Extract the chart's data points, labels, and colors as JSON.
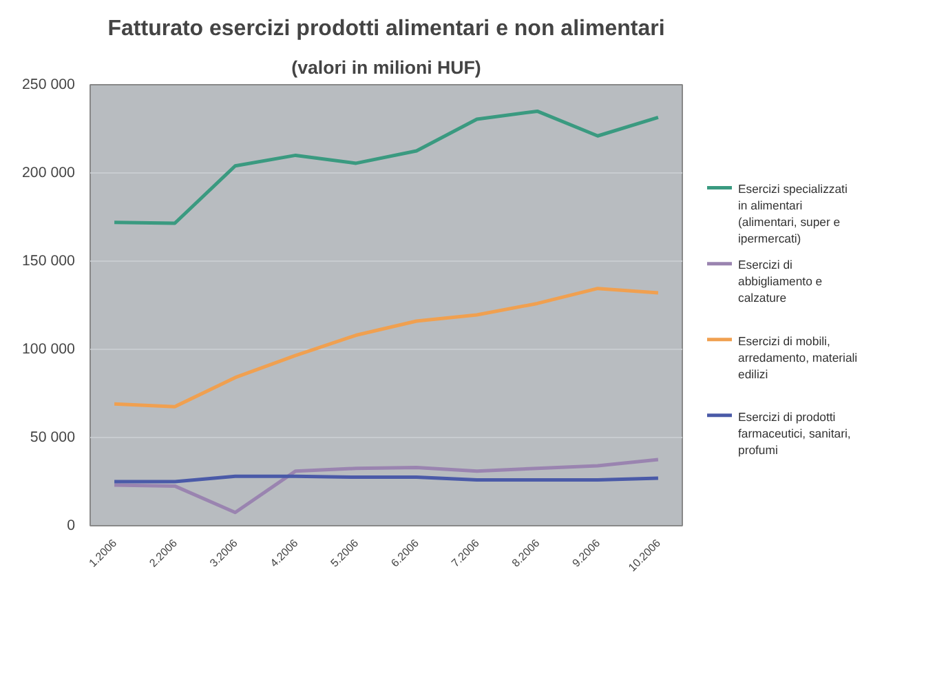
{
  "chart_data": {
    "type": "line",
    "title": "Fatturato esercizi prodotti alimentari e non alimentari",
    "subtitle": "(valori in milioni HUF)",
    "categories": [
      "1.2006",
      "2.2006",
      "3.2006",
      "4.2006",
      "5.2006",
      "6.2006",
      "7.2006",
      "8.2006",
      "9.2006",
      "10.2006"
    ],
    "series": [
      {
        "name": "Esercizi specializzati in alimentari (alimentari, super e ipermercati)",
        "color": "#3a9a80",
        "values": [
          172000,
          171500,
          204000,
          210000,
          205500,
          212500,
          230500,
          235000,
          221000,
          231500
        ]
      },
      {
        "name": "Esercizi di abbigliamento e calzature",
        "color": "#9a84b0",
        "values": [
          23000,
          22500,
          7500,
          31000,
          32500,
          33000,
          31000,
          32500,
          34000,
          37500
        ]
      },
      {
        "name": "Esercizi di mobili, arredamento, materiali edilizi",
        "color": "#f0a050",
        "values": [
          69000,
          67500,
          84000,
          96500,
          108000,
          116000,
          119500,
          126000,
          134500,
          132000
        ]
      },
      {
        "name": "Esercizi di prodotti farmaceutici, sanitari, profumi",
        "color": "#4a5aa8",
        "values": [
          25000,
          25000,
          28000,
          28000,
          27500,
          27500,
          26000,
          26000,
          26000,
          27000
        ]
      }
    ],
    "ylim": [
      0,
      250000
    ],
    "yticks": [
      0,
      {
        "value": 50000,
        "label": "50 000"
      },
      {
        "value": 100000,
        "label": "100 000"
      },
      {
        "value": 150000,
        "label": "150 000"
      },
      {
        "value": 200000,
        "label": "200 000"
      },
      {
        "value": 250000,
        "label": "250 000"
      }
    ],
    "grid": "y",
    "legend": "right",
    "marker": "none",
    "line_style": "solid"
  }
}
